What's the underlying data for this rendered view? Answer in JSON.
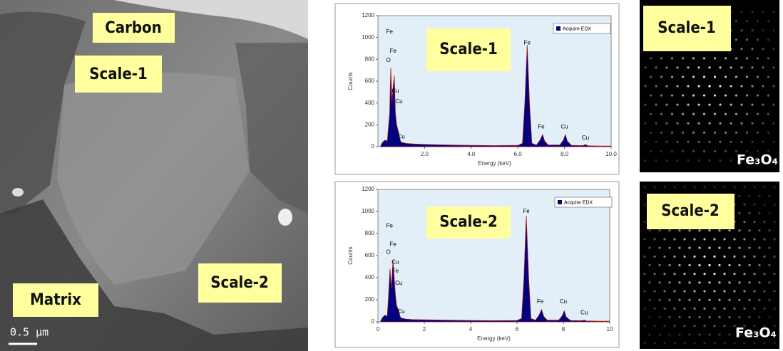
{
  "tem_image": {
    "labels": [
      "Carbon",
      "Scale-1",
      "Scale-2",
      "Matrix"
    ],
    "scale_bar": "0.5 μm"
  },
  "chart_data": [
    {
      "type": "area",
      "label": "Scale-1",
      "x_label": "Energy (keV)",
      "y_label": "Counts",
      "background": "#e2eff9",
      "line_color": "#a01818",
      "x": [
        0.1,
        0.2,
        0.3,
        0.4,
        0.5,
        0.55,
        0.6,
        0.65,
        0.7,
        0.75,
        0.8,
        0.9,
        0.95,
        1.0,
        1.2,
        1.5,
        2,
        3,
        4,
        5,
        6,
        6.2,
        6.3,
        6.4,
        6.5,
        6.6,
        6.8,
        6.95,
        7.06,
        7.15,
        7.3,
        7.8,
        7.95,
        8.04,
        8.12,
        8.3,
        8.8,
        8.9,
        9.0,
        9.5,
        10
      ],
      "series": [
        {
          "name": "Acquire EDX",
          "color": "#000080",
          "values": [
            0,
            40,
            60,
            50,
            300,
            720,
            400,
            550,
            650,
            300,
            200,
            120,
            60,
            40,
            30,
            25,
            20,
            15,
            12,
            10,
            12,
            30,
            400,
            930,
            400,
            30,
            15,
            60,
            110,
            50,
            15,
            15,
            60,
            110,
            50,
            12,
            10,
            20,
            8,
            5,
            5
          ]
        }
      ],
      "xlim": [
        0,
        10
      ],
      "ylim": [
        0,
        1200
      ],
      "xticks": [
        {
          "value": 2,
          "label": "2.0"
        },
        {
          "value": 4,
          "label": "4.0"
        },
        {
          "value": 6,
          "label": "6.0"
        },
        {
          "value": 8,
          "label": "8.0"
        },
        {
          "value": 10,
          "label": "10.0"
        }
      ],
      "yticks": [
        0,
        200,
        400,
        600,
        800,
        1000,
        1200
      ],
      "annotations": [
        {
          "text": "Fe",
          "x": 0.5,
          "y": 1050
        },
        {
          "text": "Fe",
          "x": 0.65,
          "y": 875
        },
        {
          "text": "O",
          "x": 0.45,
          "y": 790
        },
        {
          "text": "Cu",
          "x": 0.75,
          "y": 510
        },
        {
          "text": "Cu",
          "x": 0.9,
          "y": 410
        },
        {
          "text": "Cu",
          "x": 1.0,
          "y": 90
        },
        {
          "text": "Fe",
          "x": 6.4,
          "y": 950
        },
        {
          "text": "Fe",
          "x": 7.0,
          "y": 180
        },
        {
          "text": "Cu",
          "x": 8.0,
          "y": 180
        },
        {
          "text": "Cu",
          "x": 8.9,
          "y": 80
        }
      ]
    },
    {
      "type": "area",
      "label": "Scale-2",
      "x_label": "Energy (keV)",
      "y_label": "Counts",
      "background": "#e2eff9",
      "line_color": "#a01818",
      "x": [
        0.1,
        0.2,
        0.3,
        0.4,
        0.45,
        0.52,
        0.58,
        0.65,
        0.7,
        0.75,
        0.8,
        0.9,
        0.95,
        1.0,
        1.2,
        1.5,
        2,
        3,
        4,
        5,
        6,
        6.2,
        6.3,
        6.4,
        6.5,
        6.6,
        6.8,
        6.95,
        7.06,
        7.15,
        7.3,
        7.8,
        7.95,
        8.04,
        8.12,
        8.3,
        8.8,
        8.9,
        9.0,
        9.5,
        10
      ],
      "series": [
        {
          "name": "Acquire EDX",
          "color": "#000080",
          "values": [
            0,
            40,
            60,
            50,
            200,
            480,
            300,
            560,
            400,
            250,
            150,
            100,
            50,
            35,
            25,
            20,
            18,
            15,
            12,
            10,
            12,
            30,
            400,
            960,
            400,
            30,
            15,
            60,
            110,
            50,
            15,
            15,
            55,
            100,
            45,
            12,
            10,
            15,
            8,
            5,
            5
          ]
        }
      ],
      "xlim": [
        0,
        10
      ],
      "ylim": [
        0,
        1200
      ],
      "xticks": [
        0,
        2,
        4,
        6,
        8,
        10
      ],
      "yticks": [
        0,
        200,
        400,
        600,
        800,
        1000,
        1200
      ],
      "annotations": [
        {
          "text": "Fe",
          "x": 0.5,
          "y": 870
        },
        {
          "text": "Fe",
          "x": 0.65,
          "y": 700
        },
        {
          "text": "O",
          "x": 0.45,
          "y": 630
        },
        {
          "text": "Cu",
          "x": 0.75,
          "y": 540
        },
        {
          "text": "Fe",
          "x": 0.75,
          "y": 460
        },
        {
          "text": "Cu",
          "x": 0.9,
          "y": 350
        },
        {
          "text": "Cu",
          "x": 1.0,
          "y": 90
        },
        {
          "text": "Fe",
          "x": 6.4,
          "y": 1000
        },
        {
          "text": "Fe",
          "x": 7.0,
          "y": 180
        },
        {
          "text": "Cu",
          "x": 8.0,
          "y": 180
        },
        {
          "text": "Cu",
          "x": 8.9,
          "y": 80
        }
      ]
    }
  ],
  "diffraction": [
    {
      "label": "Scale-1",
      "phase": "Fe₃O₄"
    },
    {
      "label": "Scale-2",
      "phase": "Fe₃O₄"
    }
  ]
}
